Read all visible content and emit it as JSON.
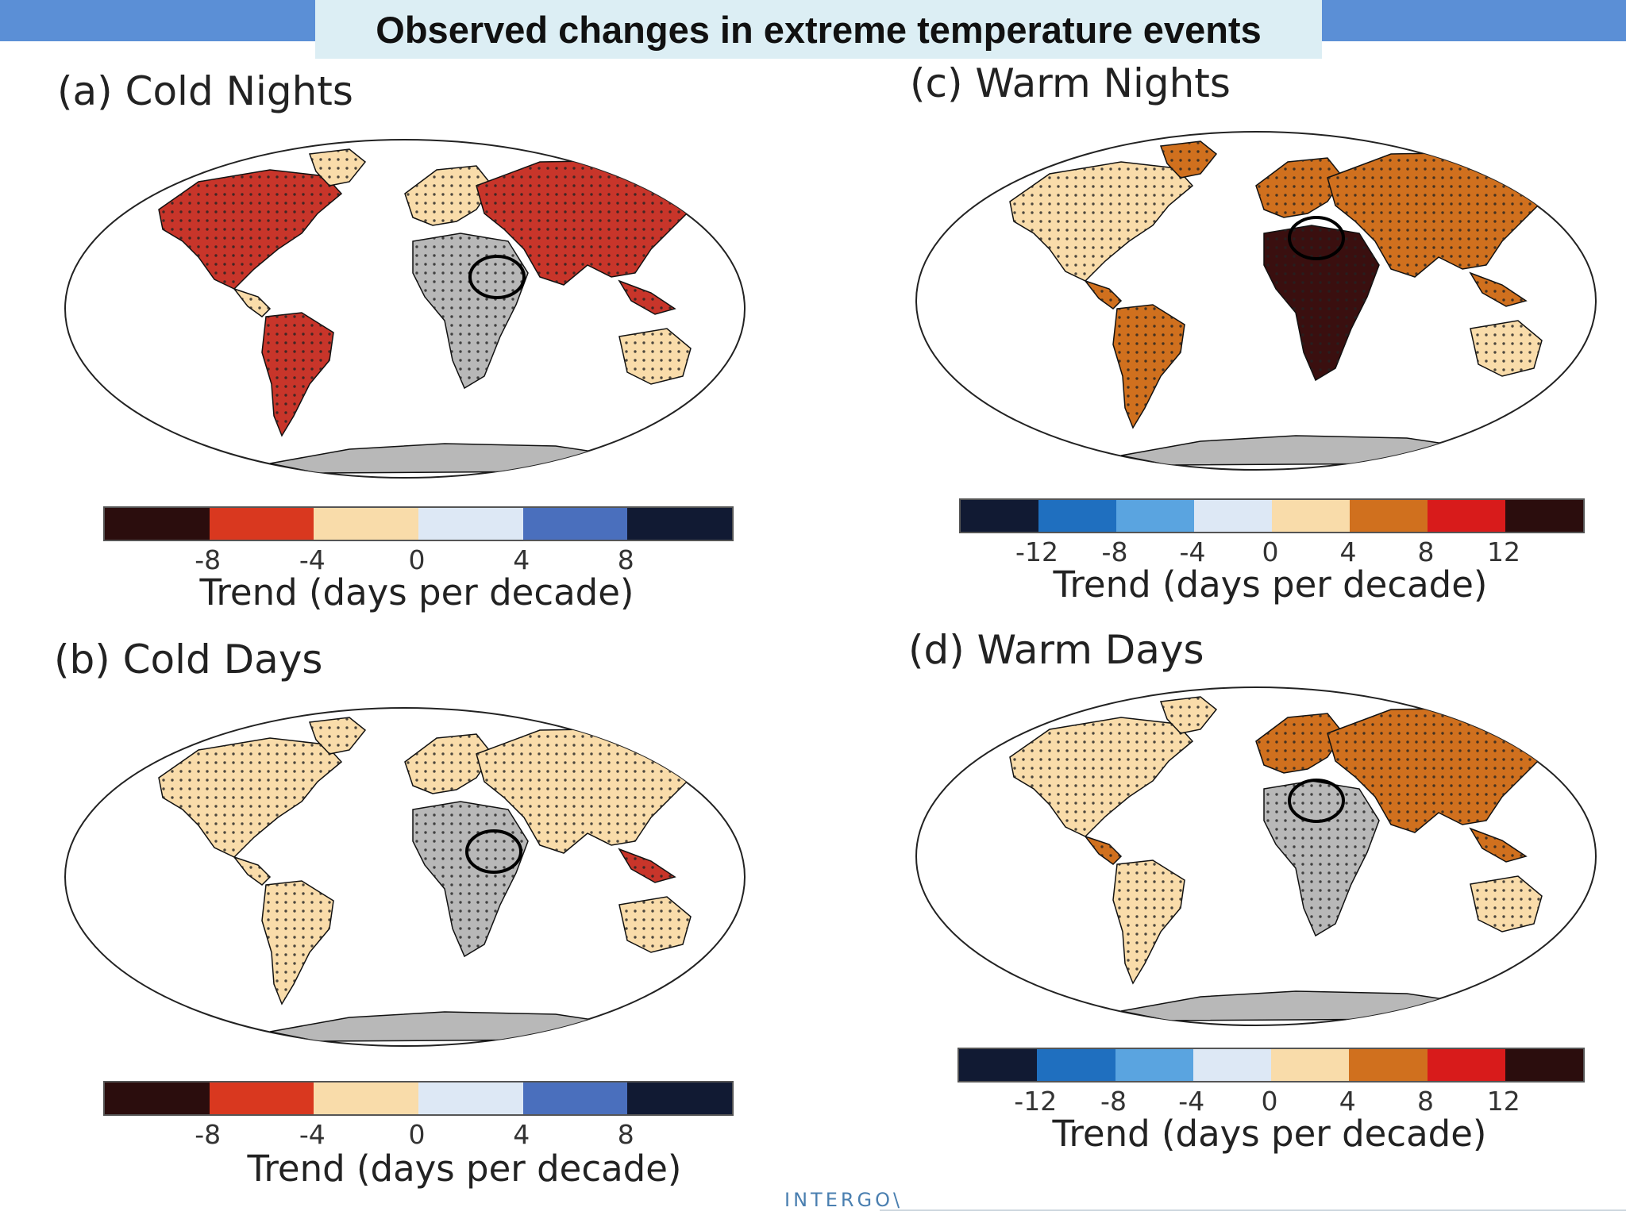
{
  "header": {
    "title": "Observed changes in extreme temperature events"
  },
  "colors": {
    "header_bar": "#5b8fd6",
    "title_bg": "#dceef4",
    "ocean": "#ffffff",
    "no_data": "#b8b8b8",
    "cold_scale": [
      "#2b0d0d",
      "#d9381f",
      "#f9dcaa",
      "#dde8f5",
      "#4a6fbd",
      "#111a33"
    ],
    "warm_scale": [
      "#111a33",
      "#1f6fbf",
      "#5aa4e0",
      "#dde8f5",
      "#f9dcaa",
      "#d0701e",
      "#d81b1b",
      "#2b0d0d"
    ]
  },
  "panels": [
    {
      "id": "a",
      "label": "(a) Cold Nights",
      "colorbar": {
        "ticks": [
          "-8",
          "-4",
          "0",
          "4",
          "8"
        ],
        "title": "Trend (days per decade)"
      }
    },
    {
      "id": "b",
      "label": "(b) Cold Days",
      "colorbar": {
        "ticks": [
          "-8",
          "-4",
          "0",
          "4",
          "8"
        ],
        "title": "Trend (days per decade)"
      }
    },
    {
      "id": "c",
      "label": "(c) Warm Nights",
      "colorbar": {
        "ticks": [
          "-12",
          "-8",
          "-4",
          "0",
          "4",
          "8",
          "12"
        ],
        "title": "Trend (days per decade)"
      }
    },
    {
      "id": "d",
      "label": "(d) Warm Days",
      "colorbar": {
        "ticks": [
          "-12",
          "-8",
          "-4",
          "0",
          "4",
          "8",
          "12"
        ],
        "title": "Trend (days per decade)"
      }
    }
  ],
  "footer": {
    "text": "INTERGO\\"
  }
}
